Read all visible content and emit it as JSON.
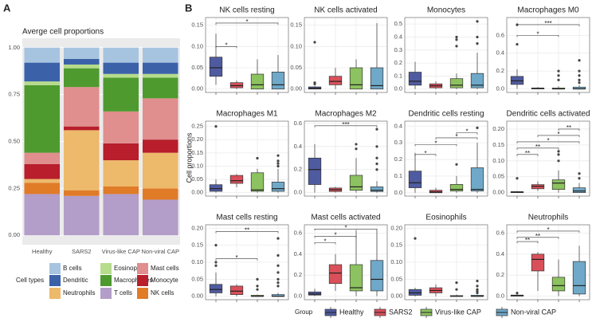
{
  "figure_labels": [
    "A",
    "B"
  ],
  "y_axis_label": "Cell proportions",
  "cell_legend_title": "Cell types",
  "group_legend": {
    "title": "Group",
    "items": [
      {
        "name": "Healthy",
        "color": "#4f5ba0"
      },
      {
        "name": "SARS2",
        "color": "#d9505a"
      },
      {
        "name": "Virus-like CAP",
        "color": "#8cc25f"
      },
      {
        "name": "Non-viral CAP",
        "color": "#6fa8c8"
      }
    ]
  },
  "chart_data": [
    {
      "type": "stacked_bar",
      "title": "Averge cell proportions",
      "categories": [
        "Healthy",
        "SARS2",
        "Virus-like CAP",
        "Non-viral CAP"
      ],
      "ylim": [
        -0.05,
        1.05
      ],
      "yticks": [
        {
          "value": 0,
          "label": "0.00"
        },
        0.25,
        {
          "value": 0.5,
          "label": "0.50"
        },
        0.75,
        {
          "value": 1,
          "label": "1.00"
        }
      ],
      "series": [
        {
          "name": "B cells",
          "color": "#a6c4e0",
          "values": [
            0.08,
            0.06,
            0.08,
            0.08
          ]
        },
        {
          "name": "Dendritic",
          "color": "#3b62a8",
          "values": [
            0.1,
            0.03,
            0.06,
            0.06
          ]
        },
        {
          "name": "Eosinophils",
          "color": "#b6dc8c",
          "values": [
            0.02,
            0.02,
            0.02,
            0.02
          ]
        },
        {
          "name": "Macrophages",
          "color": "#4e9a2f",
          "values": [
            0.36,
            0.1,
            0.18,
            0.11
          ]
        },
        {
          "name": "Mast cells",
          "color": "#e08e8e",
          "values": [
            0.06,
            0.21,
            0.17,
            0.22
          ]
        },
        {
          "name": "Monocyte",
          "color": "#b81e2b",
          "values": [
            0.08,
            0.02,
            0.09,
            0.07
          ]
        },
        {
          "name": "Neutrophils",
          "color": "#edb96a",
          "values": [
            0.02,
            0.32,
            0.14,
            0.19
          ]
        },
        {
          "name": "NK cells",
          "color": "#e07b28",
          "values": [
            0.06,
            0.03,
            0.04,
            0.06
          ]
        },
        {
          "name": "T cells",
          "color": "#b39dc9",
          "values": [
            0.22,
            0.21,
            0.22,
            0.19
          ]
        }
      ]
    },
    {
      "type": "box",
      "title": "NK cells resting",
      "ylim": [
        -0.008,
        0.168
      ],
      "yticks": [
        {
          "value": 0,
          "label": "0.00"
        },
        0.05,
        {
          "value": 0.1,
          "label": "0.10"
        },
        0.15
      ],
      "boxes": [
        {
          "whislo": 0.01,
          "q1": 0.03,
          "med": 0.05,
          "q3": 0.075,
          "whishi": 0.13,
          "fliers": []
        },
        {
          "whislo": 0,
          "q1": 0.003,
          "med": 0.008,
          "q3": 0.015,
          "whishi": 0.02,
          "fliers": []
        },
        {
          "whislo": 0,
          "q1": 0,
          "med": 0.01,
          "q3": 0.035,
          "whishi": 0.07,
          "fliers": []
        },
        {
          "whislo": 0,
          "q1": 0,
          "med": 0.01,
          "q3": 0.04,
          "whishi": 0.08,
          "fliers": []
        }
      ],
      "brackets": [
        {
          "from": 0,
          "to": 1,
          "y": 0.1,
          "label": "*"
        },
        {
          "from": 0,
          "to": 3,
          "y": 0.155,
          "label": "*"
        }
      ]
    },
    {
      "type": "box",
      "title": "NK cells activated",
      "ylim": [
        -0.008,
        0.168
      ],
      "yticks": [
        {
          "value": 0,
          "label": "0.00"
        },
        0.05,
        {
          "value": 0.1,
          "label": "0.10"
        },
        0.15
      ],
      "boxes": [
        {
          "whislo": 0,
          "q1": 0,
          "med": 0.002,
          "q3": 0.005,
          "whishi": 0.008,
          "fliers": [
            0.11,
            0.015,
            0.012
          ]
        },
        {
          "whislo": 0,
          "q1": 0.01,
          "med": 0.018,
          "q3": 0.03,
          "whishi": 0.05,
          "fliers": []
        },
        {
          "whislo": 0,
          "q1": 0,
          "med": 0.01,
          "q3": 0.05,
          "whishi": 0.07,
          "fliers": []
        },
        {
          "whislo": 0,
          "q1": 0,
          "med": 0.008,
          "q3": 0.05,
          "whishi": 0.155,
          "fliers": []
        }
      ],
      "brackets": []
    },
    {
      "type": "box",
      "title": "Monocytes",
      "ylim": [
        -0.026,
        0.55
      ],
      "yticks": [
        {
          "value": 0,
          "label": "0.0"
        },
        0.1,
        0.2,
        0.3,
        0.4,
        0.5
      ],
      "boxes": [
        {
          "whislo": 0,
          "q1": 0.03,
          "med": 0.06,
          "q3": 0.13,
          "whishi": 0.21,
          "fliers": []
        },
        {
          "whislo": 0,
          "q1": 0.01,
          "med": 0.025,
          "q3": 0.04,
          "whishi": 0.06,
          "fliers": []
        },
        {
          "whislo": 0,
          "q1": 0.01,
          "med": 0.03,
          "q3": 0.08,
          "whishi": 0.12,
          "fliers": [
            0.4,
            0.38,
            0.33
          ]
        },
        {
          "whislo": 0,
          "q1": 0.01,
          "med": 0.03,
          "q3": 0.12,
          "whishi": 0.28,
          "fliers": [
            0.52,
            0.4,
            0.35
          ]
        }
      ],
      "brackets": []
    },
    {
      "type": "box",
      "title": "Macrophages M0",
      "ylim": [
        -0.04,
        0.8
      ],
      "yticks": [
        {
          "value": 0,
          "label": "0.0"
        },
        0.2,
        0.4,
        0.6
      ],
      "boxes": [
        {
          "whislo": 0,
          "q1": 0.05,
          "med": 0.09,
          "q3": 0.14,
          "whishi": 0.22,
          "fliers": [
            0.72,
            0.5
          ]
        },
        {
          "whislo": 0,
          "q1": 0,
          "med": 0.005,
          "q3": 0.01,
          "whishi": 0.02,
          "fliers": []
        },
        {
          "whislo": 0,
          "q1": 0,
          "med": 0,
          "q3": 0.01,
          "whishi": 0.03,
          "fliers": [
            0.2,
            0.15,
            0.1
          ]
        },
        {
          "whislo": 0,
          "q1": 0,
          "med": 0,
          "q3": 0.02,
          "whishi": 0.04,
          "fliers": [
            0.32,
            0.2,
            0.15,
            0.1,
            0.07
          ]
        }
      ],
      "brackets": [
        {
          "from": 0,
          "to": 2,
          "y": 0.6,
          "label": "*"
        },
        {
          "from": 0,
          "to": 3,
          "y": 0.72,
          "label": "***"
        }
      ]
    },
    {
      "type": "box",
      "title": "Macrophages M1",
      "ylim": [
        -0.013,
        0.27
      ],
      "yticks": [
        {
          "value": 0,
          "label": "0.00"
        },
        0.05,
        {
          "value": 0.1,
          "label": "0.10"
        },
        0.15,
        {
          "value": 0.2,
          "label": "0.20"
        },
        0.25
      ],
      "boxes": [
        {
          "whislo": 0,
          "q1": 0.005,
          "med": 0.015,
          "q3": 0.03,
          "whishi": 0.05,
          "fliers": [
            0.25
          ]
        },
        {
          "whislo": 0.02,
          "q1": 0.035,
          "med": 0.045,
          "q3": 0.065,
          "whishi": 0.07,
          "fliers": []
        },
        {
          "whislo": 0,
          "q1": 0.005,
          "med": 0.01,
          "q3": 0.075,
          "whishi": 0.09,
          "fliers": [
            0.13
          ]
        },
        {
          "whislo": 0,
          "q1": 0.005,
          "med": 0.015,
          "q3": 0.04,
          "whishi": 0.09,
          "fliers": [
            0.14,
            0.12,
            0.11,
            0.1
          ]
        }
      ],
      "brackets": []
    },
    {
      "type": "box",
      "title": "Macrophages M2",
      "ylim": [
        -0.03,
        0.62
      ],
      "yticks": [
        {
          "value": 0,
          "label": "0.0"
        },
        0.2,
        0.4,
        0.6
      ],
      "boxes": [
        {
          "whislo": 0,
          "q1": 0.07,
          "med": 0.2,
          "q3": 0.3,
          "whishi": 0.42,
          "fliers": []
        },
        {
          "whislo": 0,
          "q1": 0.01,
          "med": 0.025,
          "q3": 0.04,
          "whishi": 0.05,
          "fliers": []
        },
        {
          "whislo": 0,
          "q1": 0.02,
          "med": 0.05,
          "q3": 0.15,
          "whishi": 0.3,
          "fliers": [
            0.42,
            0.38
          ]
        },
        {
          "whislo": 0,
          "q1": 0.01,
          "med": 0.02,
          "q3": 0.05,
          "whishi": 0.1,
          "fliers": [
            0.55,
            0.4,
            0.3,
            0.25,
            0.2
          ]
        }
      ],
      "brackets": [
        {
          "from": 0,
          "to": 3,
          "y": 0.58,
          "label": "***"
        }
      ]
    },
    {
      "type": "box",
      "title": "Dendritic cells resting",
      "ylim": [
        -0.02,
        0.43
      ],
      "yticks": [
        {
          "value": 0,
          "label": "0.0"
        },
        0.1,
        0.2,
        0.3,
        0.4
      ],
      "boxes": [
        {
          "whislo": 0,
          "q1": 0.03,
          "med": 0.06,
          "q3": 0.13,
          "whishi": 0.24,
          "fliers": []
        },
        {
          "whislo": 0,
          "q1": 0,
          "med": 0.005,
          "q3": 0.015,
          "whishi": 0.03,
          "fliers": []
        },
        {
          "whislo": 0,
          "q1": 0.01,
          "med": 0.02,
          "q3": 0.05,
          "whishi": 0.1,
          "fliers": [
            0.17
          ]
        },
        {
          "whislo": 0,
          "q1": 0.01,
          "med": 0.02,
          "q3": 0.15,
          "whishi": 0.3,
          "fliers": [
            0.39
          ]
        }
      ],
      "brackets": [
        {
          "from": 0,
          "to": 1,
          "y": 0.23,
          "label": "*"
        },
        {
          "from": 0,
          "to": 2,
          "y": 0.29,
          "label": "*"
        },
        {
          "from": 1,
          "to": 3,
          "y": 0.33,
          "label": "*"
        },
        {
          "from": 2,
          "to": 3,
          "y": 0.36,
          "label": "*"
        }
      ]
    },
    {
      "type": "box",
      "title": "Dendritic cells activated",
      "ylim": [
        -0.011,
        0.225
      ],
      "yticks": [
        {
          "value": 0,
          "label": "0.00"
        },
        0.05,
        {
          "value": 0.1,
          "label": "0.10"
        },
        0.15,
        {
          "value": 0.2,
          "label": "0.20"
        }
      ],
      "boxes": [
        {
          "whislo": 0,
          "q1": 0,
          "med": 0.001,
          "q3": 0.003,
          "whishi": 0.005,
          "fliers": [
            0.045
          ]
        },
        {
          "whislo": 0.005,
          "q1": 0.012,
          "med": 0.02,
          "q3": 0.025,
          "whishi": 0.035,
          "fliers": []
        },
        {
          "whislo": 0,
          "q1": 0.01,
          "med": 0.03,
          "q3": 0.04,
          "whishi": 0.07,
          "fliers": [
            0.13,
            0.12,
            0.1
          ]
        },
        {
          "whislo": 0,
          "q1": 0,
          "med": 0.005,
          "q3": 0.015,
          "whishi": 0.03,
          "fliers": [
            0.06,
            0.045
          ]
        }
      ],
      "brackets": [
        {
          "from": 0,
          "to": 1,
          "y": 0.12,
          "label": "**"
        },
        {
          "from": 0,
          "to": 2,
          "y": 0.14,
          "label": "**"
        },
        {
          "from": 0,
          "to": 3,
          "y": 0.16,
          "label": "*"
        },
        {
          "from": 1,
          "to": 3,
          "y": 0.18,
          "label": "*"
        },
        {
          "from": 2,
          "to": 3,
          "y": 0.2,
          "label": "**"
        }
      ]
    },
    {
      "type": "box",
      "title": "Mast cells resting",
      "ylim": [
        -0.01,
        0.21
      ],
      "yticks": [
        {
          "value": 0,
          "label": "0.00"
        },
        0.05,
        {
          "value": 0.1,
          "label": "0.10"
        },
        0.15,
        {
          "value": 0.2,
          "label": "0.20"
        }
      ],
      "boxes": [
        {
          "whislo": 0,
          "q1": 0.01,
          "med": 0.02,
          "q3": 0.035,
          "whishi": 0.07,
          "fliers": [
            0.15,
            0.1,
            0.09
          ]
        },
        {
          "whislo": 0,
          "q1": 0.005,
          "med": 0.015,
          "q3": 0.03,
          "whishi": 0.035,
          "fliers": []
        },
        {
          "whislo": 0,
          "q1": 0,
          "med": 0,
          "q3": 0.003,
          "whishi": 0.005,
          "fliers": [
            0.05,
            0.03,
            0.02
          ]
        },
        {
          "whislo": 0,
          "q1": 0,
          "med": 0,
          "q3": 0.005,
          "whishi": 0.01,
          "fliers": [
            0.17,
            0.12,
            0.09,
            0.07,
            0.05,
            0.04,
            0.03
          ]
        }
      ],
      "brackets": [
        {
          "from": 0,
          "to": 2,
          "y": 0.11,
          "label": "*"
        },
        {
          "from": 0,
          "to": 3,
          "y": 0.19,
          "label": "**"
        }
      ]
    },
    {
      "type": "box",
      "title": "Mast cells activated",
      "ylim": [
        -0.034,
        0.68
      ],
      "yticks": [
        {
          "value": 0,
          "label": "0.0"
        },
        0.2,
        0.4,
        0.6
      ],
      "boxes": [
        {
          "whislo": 0,
          "q1": 0.01,
          "med": 0.02,
          "q3": 0.04,
          "whishi": 0.07,
          "fliers": []
        },
        {
          "whislo": 0.05,
          "q1": 0.12,
          "med": 0.22,
          "q3": 0.3,
          "whishi": 0.4,
          "fliers": []
        },
        {
          "whislo": 0,
          "q1": 0.05,
          "med": 0.08,
          "q3": 0.3,
          "whishi": 0.63,
          "fliers": []
        },
        {
          "whislo": 0,
          "q1": 0.05,
          "med": 0.16,
          "q3": 0.34,
          "whishi": 0.63,
          "fliers": []
        }
      ],
      "brackets": [
        {
          "from": 0,
          "to": 1,
          "y": 0.51,
          "label": "*"
        },
        {
          "from": 0,
          "to": 2,
          "y": 0.57,
          "label": "*"
        },
        {
          "from": 0,
          "to": 3,
          "y": 0.64,
          "label": "*"
        }
      ]
    },
    {
      "type": "box",
      "title": "Eosinophils",
      "ylim": [
        -0.01,
        0.21
      ],
      "yticks": [
        {
          "value": 0,
          "label": "0.00"
        },
        0.05,
        {
          "value": 0.1,
          "label": "0.10"
        },
        0.15,
        {
          "value": 0.2,
          "label": "0.20"
        }
      ],
      "boxes": [
        {
          "whislo": 0,
          "q1": 0.003,
          "med": 0.01,
          "q3": 0.02,
          "whishi": 0.025,
          "fliers": [
            0.17
          ]
        },
        {
          "whislo": 0,
          "q1": 0.01,
          "med": 0.017,
          "q3": 0.025,
          "whishi": 0.035,
          "fliers": []
        },
        {
          "whislo": 0,
          "q1": 0,
          "med": 0,
          "q3": 0.002,
          "whishi": 0.005,
          "fliers": [
            0.04,
            0.02
          ]
        },
        {
          "whislo": 0,
          "q1": 0,
          "med": 0,
          "q3": 0.003,
          "whishi": 0.005,
          "fliers": [
            0.045,
            0.03,
            0.02,
            0.015,
            0.01
          ]
        }
      ],
      "brackets": []
    },
    {
      "type": "box",
      "title": "Neutrophils",
      "ylim": [
        -0.034,
        0.68
      ],
      "yticks": [
        {
          "value": 0,
          "label": "0.0"
        },
        0.2,
        0.4,
        0.6
      ],
      "boxes": [
        {
          "whislo": 0,
          "q1": 0,
          "med": 0.005,
          "q3": 0.01,
          "whishi": 0.02,
          "fliers": [
            0.03
          ]
        },
        {
          "whislo": 0.05,
          "q1": 0.24,
          "med": 0.35,
          "q3": 0.4,
          "whishi": 0.42,
          "fliers": []
        },
        {
          "whislo": 0,
          "q1": 0.05,
          "med": 0.1,
          "q3": 0.18,
          "whishi": 0.35,
          "fliers": []
        },
        {
          "whislo": 0,
          "q1": 0.02,
          "med": 0.1,
          "q3": 0.33,
          "whishi": 0.48,
          "fliers": []
        }
      ],
      "brackets": [
        {
          "from": 0,
          "to": 1,
          "y": 0.52,
          "label": "**"
        },
        {
          "from": 0,
          "to": 2,
          "y": 0.56,
          "label": "**"
        },
        {
          "from": 0,
          "to": 3,
          "y": 0.62,
          "label": "*"
        }
      ]
    }
  ]
}
